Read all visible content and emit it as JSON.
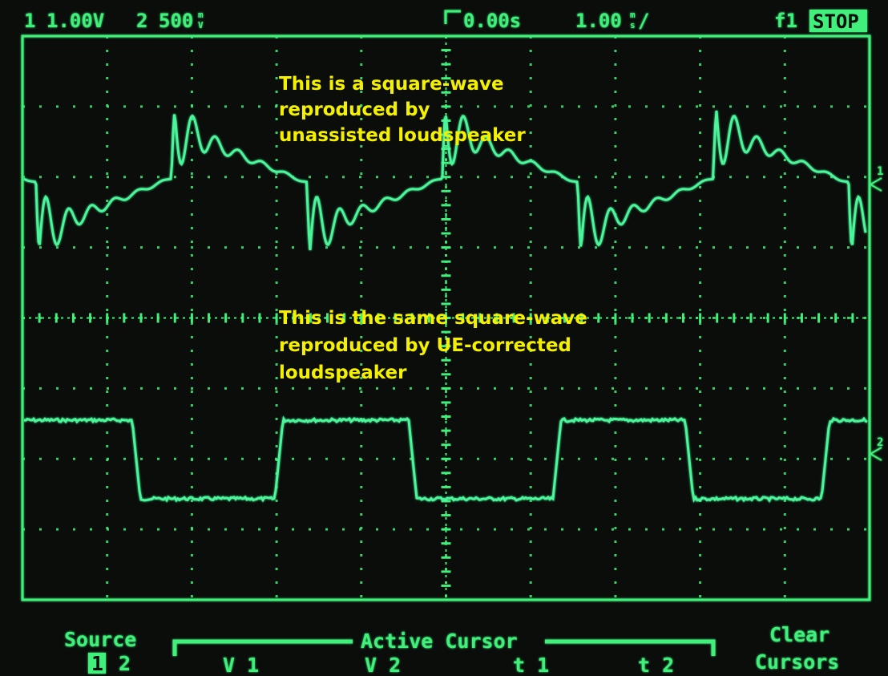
{
  "header": {
    "ch1": "1",
    "ch1_scale": "1.00V",
    "ch2": "2",
    "ch2_scale": "500",
    "ch2_unit_top": "m",
    "ch2_unit_bottom": "V",
    "time_offset": "0.00s",
    "time_scale": "1.00",
    "time_unit_top": "m",
    "time_unit_bottom": "s",
    "time_suffix": "/",
    "trigger": "f1",
    "status": "STOP"
  },
  "annotations": [
    {
      "lines": [
        "This is a square-wave",
        "reproduced by",
        "unassisted loudspeaker"
      ]
    },
    {
      "lines": [
        "This is the same square-wave",
        "reproduced by UE-corrected",
        "loudspeaker"
      ]
    }
  ],
  "markers": [
    "1",
    "2"
  ],
  "menu": {
    "source_label": "Source",
    "source_options": [
      "1",
      "2"
    ],
    "active_cursor_label": "Active Cursor",
    "cursor_options": [
      "V 1",
      "V 2",
      "t 1",
      "t 2"
    ],
    "clear_lines": [
      "Clear",
      "Cursors"
    ]
  }
}
